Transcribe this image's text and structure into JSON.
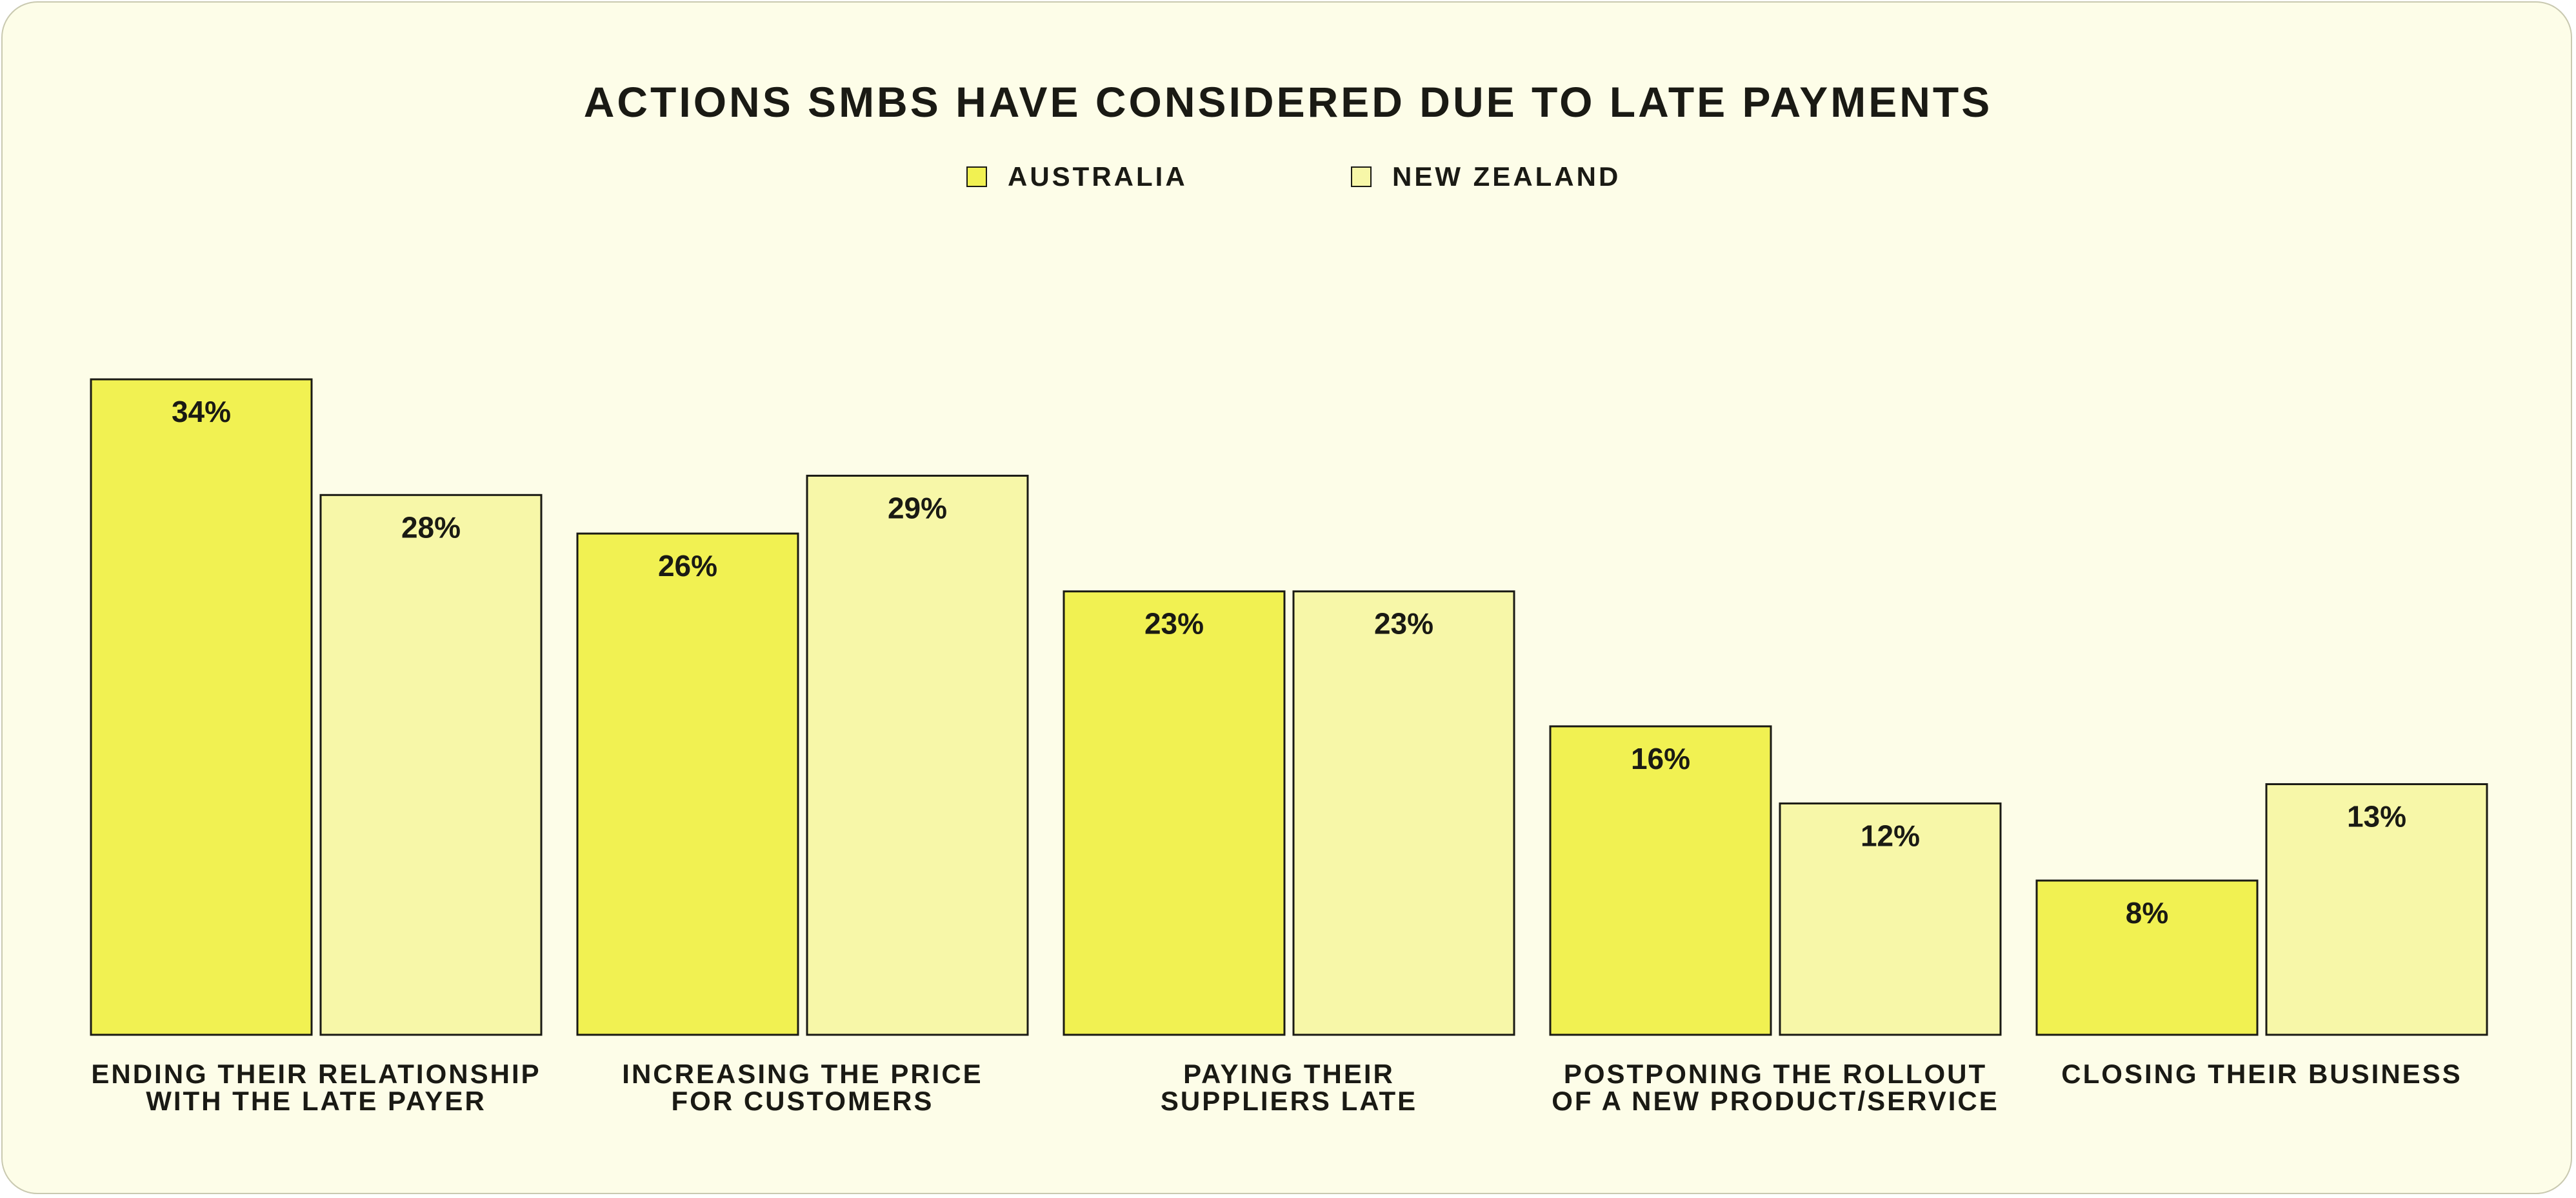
{
  "chart_data": {
    "type": "bar",
    "title": "ACTIONS SMBS HAVE CONSIDERED DUE TO LATE PAYMENTS",
    "categories": [
      [
        "ENDING THEIR RELATIONSHIP",
        "WITH THE LATE PAYER"
      ],
      [
        "INCREASING THE PRICE",
        "FOR CUSTOMERS"
      ],
      [
        "PAYING THEIR",
        "SUPPLIERS LATE"
      ],
      [
        "POSTPONING THE ROLLOUT",
        "OF A NEW PRODUCT/SERVICE"
      ],
      [
        "CLOSING THEIR BUSINESS"
      ]
    ],
    "series": [
      {
        "name": "AUSTRALIA",
        "color": "#f1f152",
        "values": [
          34,
          26,
          23,
          16,
          8
        ]
      },
      {
        "name": "NEW ZEALAND",
        "color": "#f7f7a8",
        "values": [
          28,
          29,
          23,
          12,
          13
        ]
      }
    ],
    "value_suffix": "%",
    "ylim": [
      0,
      34
    ],
    "grid": false,
    "legend": "top-center"
  }
}
